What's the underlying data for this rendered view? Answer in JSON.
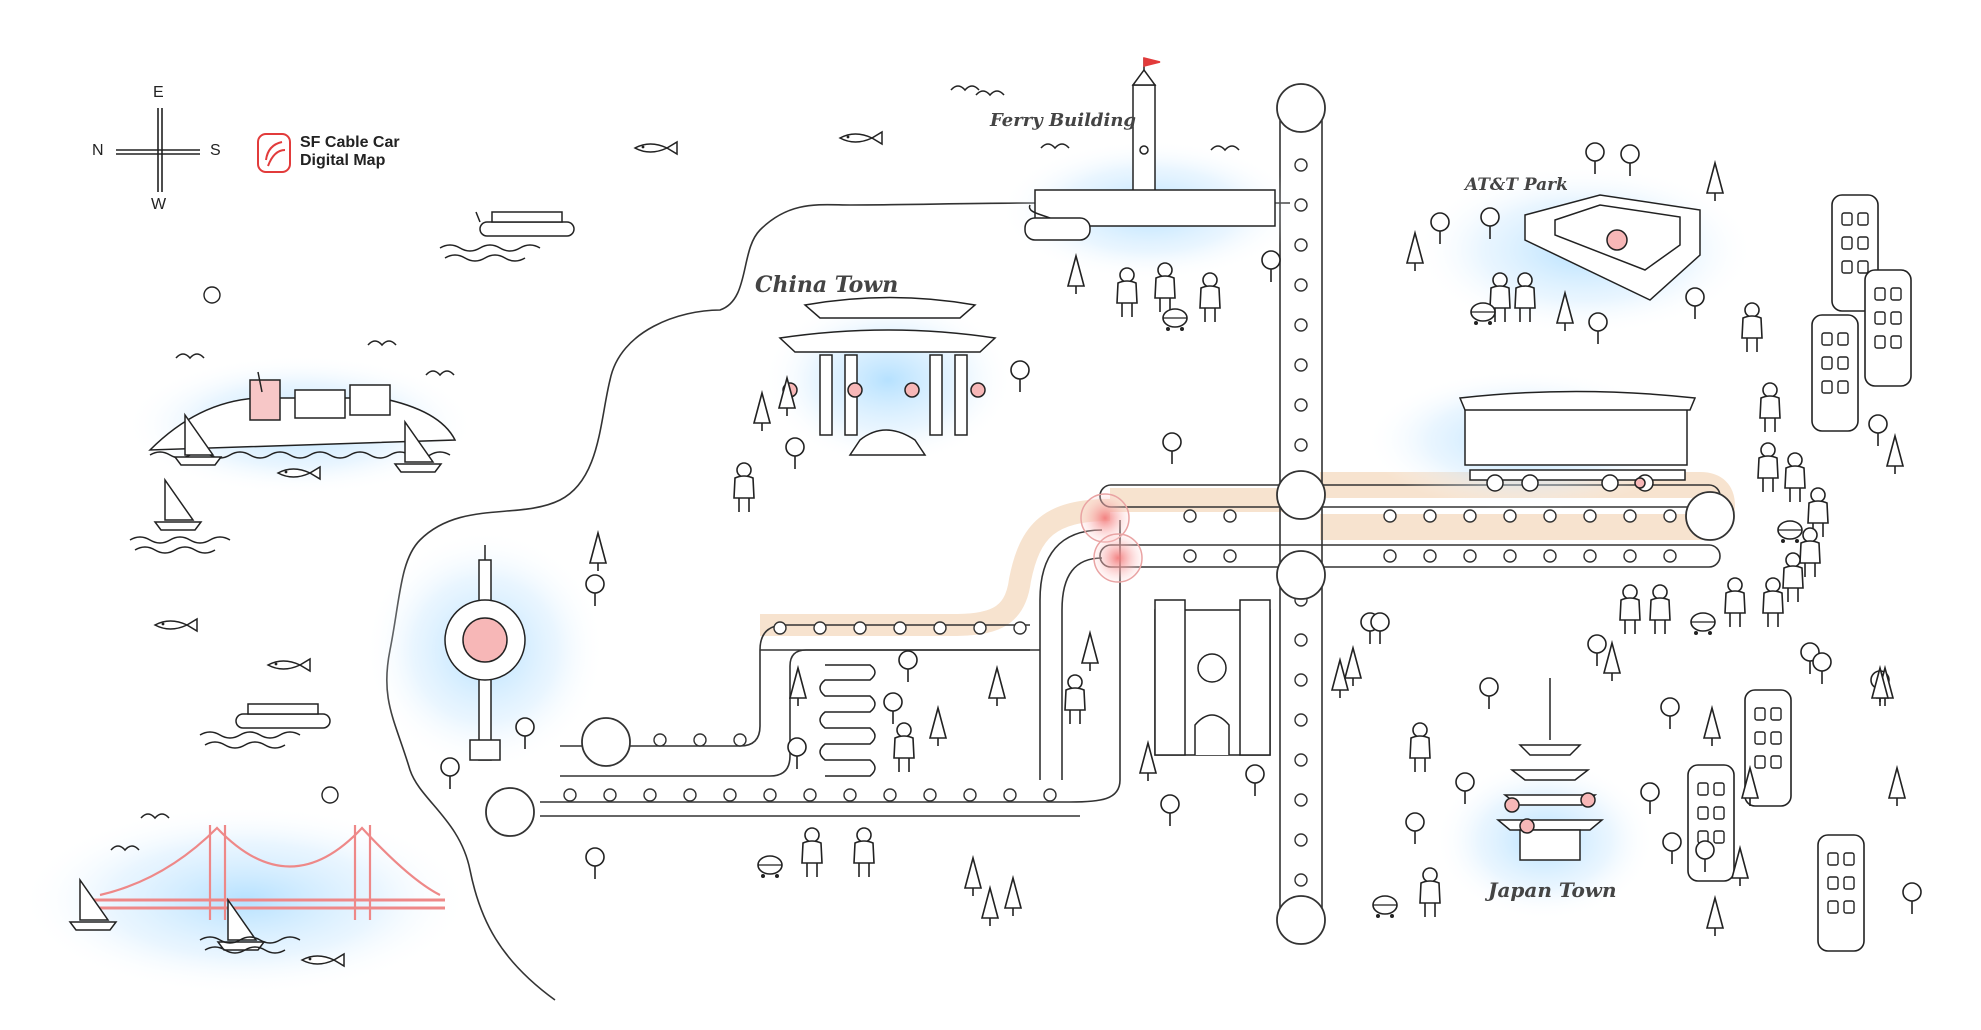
{
  "compass": {
    "east": "E",
    "north": "N",
    "south": "S",
    "west": "W"
  },
  "brand": {
    "line1": "SF Cable Car",
    "line2": "Digital Map",
    "color": "#e23b3b"
  },
  "landmarks": {
    "ferry_building": "Ferry Building",
    "att_park": "AT&T Park",
    "china_town": "China Town",
    "japan_town": "Japan Town"
  },
  "colors": {
    "accent": "#e23b3b",
    "glow": "#bfe6ff",
    "route_highlight": "#f7e3cf",
    "line": "#222222"
  }
}
